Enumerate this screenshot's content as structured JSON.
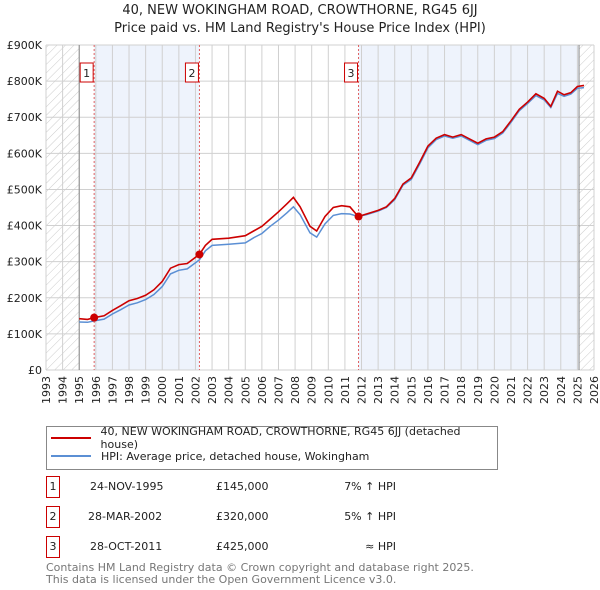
{
  "chart_data": {
    "type": "line",
    "title": "40, NEW WOKINGHAM ROAD, CROWTHORNE, RG45 6JJ",
    "subtitle": "Price paid vs. HM Land Registry's House Price Index (HPI)",
    "xlim": [
      1993,
      2026
    ],
    "ylim": [
      0,
      900000
    ],
    "x_ticks": [
      "1993",
      "1994",
      "1995",
      "1996",
      "1997",
      "1998",
      "1999",
      "2000",
      "2001",
      "2002",
      "2003",
      "2004",
      "2005",
      "2006",
      "2007",
      "2008",
      "2009",
      "2010",
      "2011",
      "2012",
      "2013",
      "2014",
      "2015",
      "2016",
      "2017",
      "2018",
      "2019",
      "2020",
      "2021",
      "2022",
      "2023",
      "2024",
      "2025",
      "2026"
    ],
    "y_ticks": [
      {
        "v": 0,
        "label": "£0"
      },
      {
        "v": 100000,
        "label": "£100K"
      },
      {
        "v": 200000,
        "label": "£200K"
      },
      {
        "v": 300000,
        "label": "£300K"
      },
      {
        "v": 400000,
        "label": "£400K"
      },
      {
        "v": 500000,
        "label": "£500K"
      },
      {
        "v": 600000,
        "label": "£600K"
      },
      {
        "v": 700000,
        "label": "£700K"
      },
      {
        "v": 800000,
        "label": "£800K"
      },
      {
        "v": 900000,
        "label": "£900K"
      }
    ],
    "grid": true,
    "series": [
      {
        "name": "40, NEW WOKINGHAM ROAD, CROWTHORNE, RG45 6JJ (detached house)",
        "color": "#cc0000",
        "x": [
          1995.0,
          1995.5,
          1995.9,
          1996.5,
          1997,
          1997.5,
          1998,
          1998.5,
          1999,
          1999.5,
          2000,
          2000.5,
          2001,
          2001.5,
          2002.24,
          2002.6,
          2003,
          2004,
          2005,
          2005.5,
          2006,
          2006.5,
          2007,
          2007.5,
          2007.9,
          2008.3,
          2008.9,
          2009.3,
          2009.8,
          2010.3,
          2010.8,
          2011.3,
          2011.8,
          2012.3,
          2013,
          2013.5,
          2014,
          2014.5,
          2015,
          2015.5,
          2016,
          2016.5,
          2017,
          2017.5,
          2018,
          2018.5,
          2019,
          2019.5,
          2020,
          2020.5,
          2021,
          2021.5,
          2022,
          2022.5,
          2023,
          2023.4,
          2023.8,
          2024.2,
          2024.6,
          2025,
          2025.4
        ],
        "y": [
          142000,
          140000,
          145000,
          150000,
          165000,
          178000,
          192000,
          198000,
          207000,
          222000,
          245000,
          282000,
          292000,
          295000,
          320000,
          345000,
          362000,
          365000,
          372000,
          385000,
          398000,
          418000,
          438000,
          460000,
          478000,
          452000,
          398000,
          385000,
          425000,
          450000,
          455000,
          452000,
          425000,
          432000,
          442000,
          452000,
          475000,
          515000,
          532000,
          575000,
          620000,
          642000,
          652000,
          645000,
          652000,
          640000,
          628000,
          640000,
          645000,
          660000,
          690000,
          722000,
          742000,
          765000,
          752000,
          730000,
          772000,
          762000,
          768000,
          785000,
          788000
        ]
      },
      {
        "name": "HPI: Average price, detached house, Wokingham",
        "color": "#5b8fd4",
        "x": [
          1995.0,
          1995.5,
          1995.9,
          1996.5,
          1997,
          1997.5,
          1998,
          1998.5,
          1999,
          1999.5,
          2000,
          2000.5,
          2001,
          2001.5,
          2002.24,
          2002.6,
          2003,
          2004,
          2005,
          2005.5,
          2006,
          2006.5,
          2007,
          2007.5,
          2007.9,
          2008.3,
          2008.9,
          2009.3,
          2009.8,
          2010.3,
          2010.8,
          2011.3,
          2011.8,
          2012.3,
          2013,
          2013.5,
          2014,
          2014.5,
          2015,
          2015.5,
          2016,
          2016.5,
          2017,
          2017.5,
          2018,
          2018.5,
          2019,
          2019.5,
          2020,
          2020.5,
          2021,
          2021.5,
          2022,
          2022.5,
          2023,
          2023.4,
          2023.8,
          2024.2,
          2024.6,
          2025,
          2025.4
        ],
        "y": [
          133000,
          132000,
          136000,
          141000,
          155000,
          167000,
          180000,
          186000,
          195000,
          209000,
          231000,
          266000,
          276000,
          280000,
          305000,
          330000,
          345000,
          348000,
          352000,
          366000,
          378000,
          398000,
          415000,
          435000,
          452000,
          430000,
          380000,
          368000,
          405000,
          428000,
          433000,
          432000,
          425000,
          430000,
          440000,
          450000,
          472000,
          512000,
          528000,
          570000,
          615000,
          638000,
          648000,
          642000,
          648000,
          636000,
          624000,
          636000,
          641000,
          656000,
          686000,
          718000,
          738000,
          760000,
          748000,
          727000,
          766000,
          758000,
          764000,
          780000,
          782000
        ]
      }
    ],
    "sales": [
      {
        "num": "1",
        "x": 1995.9,
        "date": "24-NOV-1995",
        "price_value": 145000,
        "price": "£145,000",
        "hpi": "7% ↑ HPI"
      },
      {
        "num": "2",
        "x": 2002.24,
        "date": "28-MAR-2002",
        "price_value": 320000,
        "price": "£320,000",
        "hpi": "5% ↑ HPI"
      },
      {
        "num": "3",
        "x": 2011.82,
        "date": "28-OCT-2011",
        "price_value": 425000,
        "price": "£425,000",
        "hpi": "≈ HPI"
      }
    ],
    "legend_placement": "below"
  },
  "footer": {
    "line1": "Contains HM Land Registry data © Crown copyright and database right 2025.",
    "line2": "This data is licensed under the Open Government Licence v3.0."
  }
}
